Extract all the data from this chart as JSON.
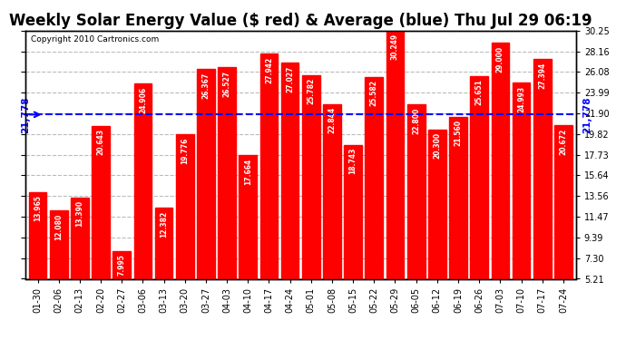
{
  "title": "Weekly Solar Energy Value ($ red) & Average (blue) Thu Jul 29 06:19",
  "copyright": "Copyright 2010 Cartronics.com",
  "average_label": "21,778",
  "average_value": 21.778,
  "bar_color": "#FF0000",
  "avg_line_color": "#0000FF",
  "background_color": "#FFFFFF",
  "plot_bg_color": "#FFFFFF",
  "grid_color": "#BBBBBB",
  "categories": [
    "01-30",
    "02-06",
    "02-13",
    "02-20",
    "02-27",
    "03-06",
    "03-13",
    "03-20",
    "03-27",
    "04-03",
    "04-10",
    "04-17",
    "04-24",
    "05-01",
    "05-08",
    "05-15",
    "05-22",
    "05-29",
    "06-05",
    "06-12",
    "06-19",
    "06-26",
    "07-03",
    "07-10",
    "07-17",
    "07-24"
  ],
  "values": [
    13.965,
    12.08,
    13.39,
    20.643,
    7.995,
    24.906,
    12.382,
    19.776,
    26.367,
    26.527,
    17.664,
    27.942,
    27.027,
    25.782,
    22.844,
    18.743,
    25.582,
    30.249,
    22.8,
    20.3,
    21.56,
    25.651,
    29.0,
    24.993,
    27.394,
    20.672
  ],
  "ylim_min": 5.21,
  "ylim_max": 30.25,
  "yticks": [
    5.21,
    7.3,
    9.39,
    11.47,
    13.56,
    15.64,
    17.73,
    19.82,
    21.9,
    23.99,
    26.08,
    28.16,
    30.25
  ],
  "title_fontsize": 12,
  "tick_fontsize": 7,
  "bar_value_fontsize": 5.5,
  "avg_fontsize": 7.5,
  "copyright_fontsize": 6.5
}
